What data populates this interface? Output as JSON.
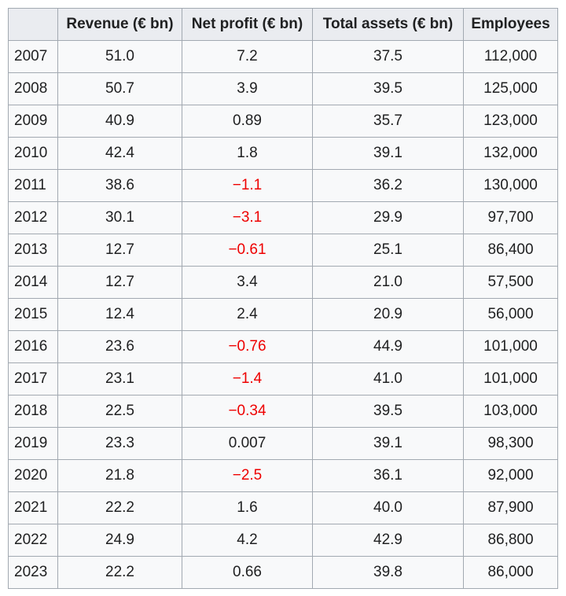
{
  "table": {
    "headers": [
      "",
      "Revenue (€ bn)",
      "Net profit (€ bn)",
      "Total assets (€ bn)",
      "Employees"
    ],
    "rows": [
      {
        "year": "2007",
        "revenue": "51.0",
        "net_profit": "7.2",
        "net_negative": false,
        "assets": "37.5",
        "employees": "112,000"
      },
      {
        "year": "2008",
        "revenue": "50.7",
        "net_profit": "3.9",
        "net_negative": false,
        "assets": "39.5",
        "employees": "125,000"
      },
      {
        "year": "2009",
        "revenue": "40.9",
        "net_profit": "0.89",
        "net_negative": false,
        "assets": "35.7",
        "employees": "123,000"
      },
      {
        "year": "2010",
        "revenue": "42.4",
        "net_profit": "1.8",
        "net_negative": false,
        "assets": "39.1",
        "employees": "132,000"
      },
      {
        "year": "2011",
        "revenue": "38.6",
        "net_profit": "−1.1",
        "net_negative": true,
        "assets": "36.2",
        "employees": "130,000"
      },
      {
        "year": "2012",
        "revenue": "30.1",
        "net_profit": "−3.1",
        "net_negative": true,
        "assets": "29.9",
        "employees": "97,700"
      },
      {
        "year": "2013",
        "revenue": "12.7",
        "net_profit": "−0.61",
        "net_negative": true,
        "assets": "25.1",
        "employees": "86,400"
      },
      {
        "year": "2014",
        "revenue": "12.7",
        "net_profit": "3.4",
        "net_negative": false,
        "assets": "21.0",
        "employees": "57,500"
      },
      {
        "year": "2015",
        "revenue": "12.4",
        "net_profit": "2.4",
        "net_negative": false,
        "assets": "20.9",
        "employees": "56,000"
      },
      {
        "year": "2016",
        "revenue": "23.6",
        "net_profit": "−0.76",
        "net_negative": true,
        "assets": "44.9",
        "employees": "101,000"
      },
      {
        "year": "2017",
        "revenue": "23.1",
        "net_profit": "−1.4",
        "net_negative": true,
        "assets": "41.0",
        "employees": "101,000"
      },
      {
        "year": "2018",
        "revenue": "22.5",
        "net_profit": "−0.34",
        "net_negative": true,
        "assets": "39.5",
        "employees": "103,000"
      },
      {
        "year": "2019",
        "revenue": "23.3",
        "net_profit": "0.007",
        "net_negative": false,
        "assets": "39.1",
        "employees": "98,300"
      },
      {
        "year": "2020",
        "revenue": "21.8",
        "net_profit": "−2.5",
        "net_negative": true,
        "assets": "36.1",
        "employees": "92,000"
      },
      {
        "year": "2021",
        "revenue": "22.2",
        "net_profit": "1.6",
        "net_negative": false,
        "assets": "40.0",
        "employees": "87,900"
      },
      {
        "year": "2022",
        "revenue": "24.9",
        "net_profit": "4.2",
        "net_negative": false,
        "assets": "42.9",
        "employees": "86,800"
      },
      {
        "year": "2023",
        "revenue": "22.2",
        "net_profit": "0.66",
        "net_negative": false,
        "assets": "39.8",
        "employees": "86,000"
      }
    ]
  },
  "colors": {
    "negative_value": "#ee0000",
    "header_background": "#eaecf0",
    "cell_background": "#f8f9fa",
    "border": "#a2a9b1",
    "text": "#202122"
  }
}
